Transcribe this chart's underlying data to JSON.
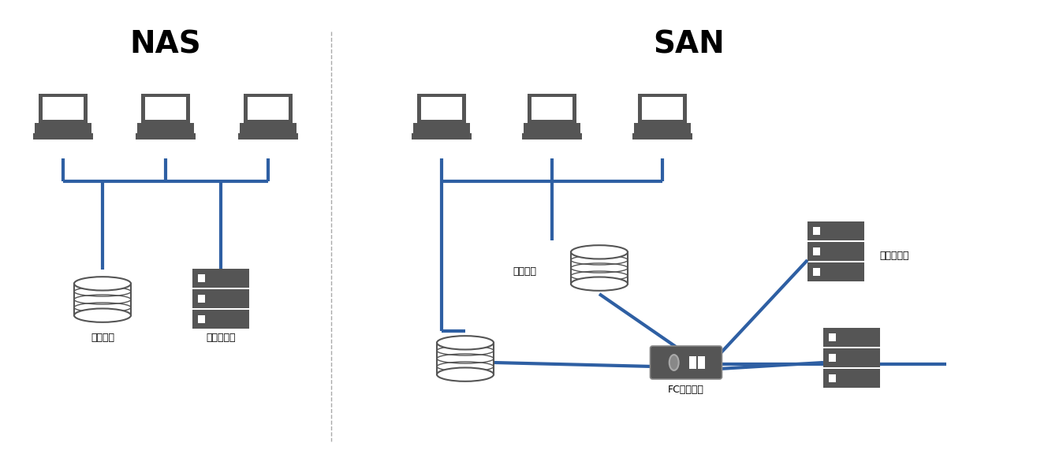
{
  "bg_color": "#ffffff",
  "line_color": "#2E5FA3",
  "icon_color": "#555555",
  "divider_color": "#aaaaaa",
  "nas_title": "NAS",
  "san_title": "SAN",
  "title_fontsize": 28,
  "label_fontsize": 9,
  "line_width": 3.0,
  "nas_label_server": "サーバー",
  "nas_label_storage": "ストレージ",
  "san_label_server": "サーバー",
  "san_label_storage": "ストレージ",
  "san_label_fc": "FCスイッチ"
}
